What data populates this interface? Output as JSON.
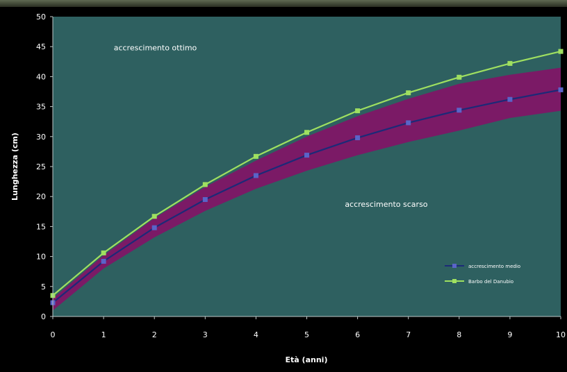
{
  "chart_data": {
    "type": "line",
    "xlabel": "Età (anni)",
    "ylabel": "Lunghezza (cm)",
    "xlim": [
      0,
      10
    ],
    "ylim": [
      0,
      50
    ],
    "xticks": [
      "0",
      "1",
      "2",
      "3",
      "4",
      "5",
      "6",
      "7",
      "8",
      "9",
      "10"
    ],
    "yticks": [
      "0",
      "5",
      "10",
      "15",
      "20",
      "25",
      "30",
      "35",
      "40",
      "45",
      "50"
    ],
    "grid": false,
    "legend_position": "bottom-right",
    "x": [
      0,
      1,
      2,
      3,
      4,
      5,
      6,
      7,
      8,
      9,
      10
    ],
    "series": [
      {
        "name": "accrescimento medio",
        "values": [
          2.3,
          9.2,
          14.8,
          19.5,
          23.5,
          26.9,
          29.8,
          32.3,
          34.4,
          36.2,
          37.8
        ],
        "color": "#5a64c8",
        "line_color": "#1c2a78"
      },
      {
        "name": "Barbo del Danubio",
        "values": [
          3.5,
          10.6,
          16.7,
          22.0,
          26.7,
          30.7,
          34.3,
          37.3,
          39.9,
          42.2,
          44.2
        ],
        "color": "#9fe060"
      }
    ],
    "band": {
      "upper": [
        3.0,
        10.2,
        16.4,
        21.6,
        26.0,
        30.0,
        33.4,
        36.3,
        38.8,
        40.3,
        41.5
      ],
      "lower": [
        1.0,
        8.0,
        13.2,
        17.6,
        21.3,
        24.3,
        26.9,
        29.1,
        31.0,
        33.1,
        34.3
      ],
      "color": "#7b1a66"
    },
    "annotations": [
      {
        "text": "accrescimento ottimo",
        "x": 1.2,
        "y": 44.4
      },
      {
        "text": "accrescimento scarso",
        "x": 5.75,
        "y": 18.3
      }
    ],
    "background": "#2e6060"
  }
}
